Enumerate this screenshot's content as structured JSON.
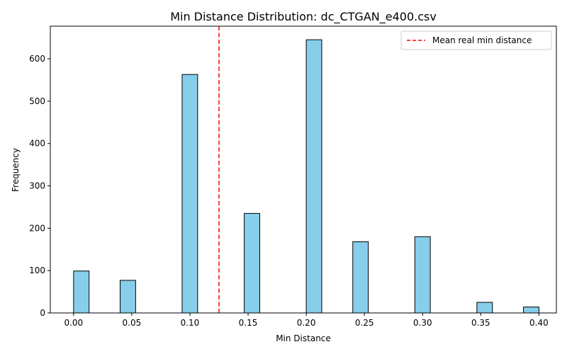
{
  "chart_data": {
    "type": "bar",
    "title": "Min Distance Distribution: dc_CTGAN_e400.csv",
    "xlabel": "Min Distance",
    "ylabel": "Frequency",
    "xlim": [
      -0.02,
      0.415
    ],
    "ylim": [
      0,
      677
    ],
    "xticks": [
      "0.00",
      "0.05",
      "0.10",
      "0.15",
      "0.20",
      "0.25",
      "0.30",
      "0.35",
      "0.40"
    ],
    "xtick_values": [
      0.0,
      0.05,
      0.1,
      0.15,
      0.2,
      0.25,
      0.3,
      0.35,
      0.4
    ],
    "yticks": [
      "0",
      "100",
      "200",
      "300",
      "400",
      "500",
      "600"
    ],
    "ytick_values": [
      0,
      100,
      200,
      300,
      400,
      500,
      600
    ],
    "bin_width": 0.01333,
    "bars": [
      {
        "x": 0.0,
        "value": 99
      },
      {
        "x": 0.04,
        "value": 77
      },
      {
        "x": 0.0933,
        "value": 563
      },
      {
        "x": 0.1467,
        "value": 235
      },
      {
        "x": 0.2,
        "value": 645
      },
      {
        "x": 0.24,
        "value": 168
      },
      {
        "x": 0.2933,
        "value": 180
      },
      {
        "x": 0.3467,
        "value": 25
      },
      {
        "x": 0.3867,
        "value": 14
      }
    ],
    "bar_color": "#87CEEB",
    "bar_edge_color": "#000000",
    "vline": {
      "x": 0.125,
      "color": "#ff0000",
      "style": "dashed",
      "label": "Mean real min distance"
    },
    "legend": {
      "position": "top-right",
      "entries": [
        "Mean real min distance"
      ]
    },
    "grid": false
  }
}
